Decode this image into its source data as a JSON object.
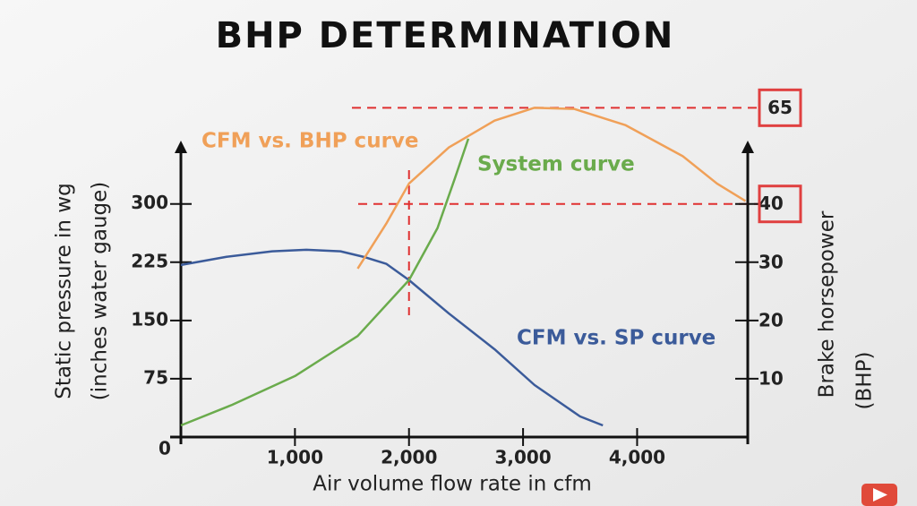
{
  "chart_data": {
    "type": "line",
    "title": "BHP DETERMINATION",
    "x_label": "Air volume flow rate in cfm",
    "y_label": [
      "Static pressure in wg",
      "(inches water gauge)"
    ],
    "y2_label": [
      "Brake horsepower",
      "(BHP)"
    ],
    "xlim": [
      0,
      4970
    ],
    "xticks": [
      {
        "value": 0,
        "label": "0"
      },
      {
        "value": 1000,
        "label": "1,000"
      },
      {
        "value": 2000,
        "label": "2,000"
      },
      {
        "value": 3000,
        "label": "3,000"
      },
      {
        "value": 4000,
        "label": "4,000"
      }
    ],
    "ylim": [
      0,
      370
    ],
    "yticks": [
      75,
      150,
      225,
      300
    ],
    "y2lim": [
      0,
      49.33
    ],
    "y2ticks": [
      10,
      20,
      30,
      40
    ],
    "grid": false,
    "series": [
      {
        "name": "CFM vs. SP curve",
        "color": "#3b5b9a",
        "x": [
          0,
          400,
          800,
          1100,
          1400,
          1600,
          1800,
          2000,
          2350,
          2750,
          3100,
          3500,
          3700
        ],
        "values": [
          221.5,
          232,
          239,
          241,
          239,
          232,
          223,
          202,
          159,
          113,
          67,
          26.5,
          15
        ]
      },
      {
        "name": "System curve",
        "color": "#6aab4c",
        "x": [
          0,
          450,
          1000,
          1550,
          2000,
          2250,
          2400,
          2520
        ],
        "values": [
          15,
          41.5,
          78.5,
          130,
          202,
          269,
          332,
          384
        ]
      },
      {
        "name": "CFM vs. BHP curve",
        "color": "#f0a058",
        "axis": "y2",
        "x": [
          1550,
          1800,
          2000,
          2350,
          2750,
          3100,
          3450,
          3900,
          4400,
          4700,
          4950
        ],
        "values": [
          28.9,
          36.6,
          43.5,
          49.7,
          54.3,
          56.5,
          56.3,
          53.5,
          48.2,
          43.5,
          40.5
        ]
      }
    ],
    "annotations": [
      "65"
    ]
  }
}
